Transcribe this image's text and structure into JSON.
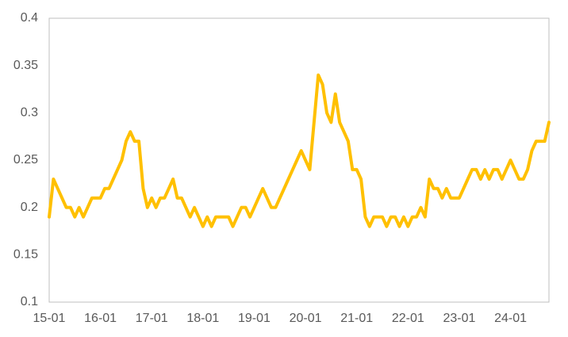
{
  "chart_data": {
    "type": "line",
    "categories": [
      "15-01",
      null,
      null,
      null,
      null,
      null,
      null,
      null,
      null,
      null,
      null,
      null,
      "16-01",
      null,
      null,
      null,
      null,
      null,
      null,
      null,
      null,
      null,
      null,
      null,
      "17-01",
      null,
      null,
      null,
      null,
      null,
      null,
      null,
      null,
      null,
      null,
      null,
      "18-01",
      null,
      null,
      null,
      null,
      null,
      null,
      null,
      null,
      null,
      null,
      null,
      "19-01",
      null,
      null,
      null,
      null,
      null,
      null,
      null,
      null,
      null,
      null,
      null,
      "20-01",
      null,
      null,
      null,
      null,
      null,
      null,
      null,
      null,
      null,
      null,
      null,
      "21-01",
      null,
      null,
      null,
      null,
      null,
      null,
      null,
      null,
      null,
      null,
      null,
      "22-01",
      null,
      null,
      null,
      null,
      null,
      null,
      null,
      null,
      null,
      null,
      null,
      "23-01",
      null,
      null,
      null,
      null,
      null,
      null,
      null,
      null,
      null,
      null,
      null,
      "24-01",
      null,
      null,
      null,
      null,
      null,
      null,
      null,
      null,
      null
    ],
    "series": [
      {
        "color": "#FFC000",
        "values": [
          0.19,
          0.23,
          0.22,
          0.21,
          0.2,
          0.2,
          0.19,
          0.2,
          0.19,
          0.2,
          0.21,
          0.21,
          0.21,
          0.22,
          0.22,
          0.23,
          0.24,
          0.25,
          0.27,
          0.28,
          0.27,
          0.27,
          0.22,
          0.2,
          0.21,
          0.2,
          0.21,
          0.21,
          0.22,
          0.23,
          0.21,
          0.21,
          0.2,
          0.19,
          0.2,
          0.19,
          0.18,
          0.19,
          0.18,
          0.19,
          0.19,
          0.19,
          0.19,
          0.18,
          0.19,
          0.2,
          0.2,
          0.19,
          0.2,
          0.21,
          0.22,
          0.21,
          0.2,
          0.2,
          0.21,
          0.22,
          0.23,
          0.24,
          0.25,
          0.26,
          0.25,
          0.24,
          0.29,
          0.34,
          0.33,
          0.3,
          0.29,
          0.32,
          0.29,
          0.28,
          0.27,
          0.24,
          0.24,
          0.23,
          0.19,
          0.18,
          0.19,
          0.19,
          0.19,
          0.18,
          0.19,
          0.19,
          0.18,
          0.19,
          0.18,
          0.19,
          0.19,
          0.2,
          0.19,
          0.23,
          0.22,
          0.22,
          0.21,
          0.22,
          0.21,
          0.21,
          0.21,
          0.22,
          0.23,
          0.24,
          0.24,
          0.23,
          0.24,
          0.23,
          0.24,
          0.24,
          0.23,
          0.24,
          0.25,
          0.24,
          0.23,
          0.23,
          0.24,
          0.26,
          0.27,
          0.27,
          0.27,
          0.29
        ]
      }
    ],
    "ylim": [
      0.1,
      0.4
    ],
    "yticks": [
      0.1,
      0.15,
      0.2,
      0.25,
      0.3,
      0.35,
      0.4
    ],
    "grid": false
  }
}
